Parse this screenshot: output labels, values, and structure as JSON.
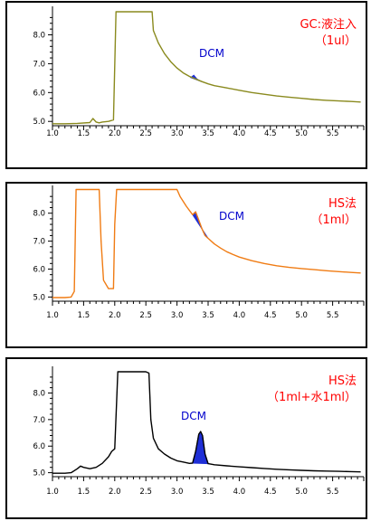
{
  "chart_data": [
    {
      "type": "line",
      "panel_title_lines": [
        "GC:液注入",
        "（1ul）"
      ],
      "peak_label": "DCM",
      "x_ticks": [
        "1.0",
        "1.5",
        "2.0",
        "2.5",
        "3.0",
        "3.5",
        "4.0",
        "4.5",
        "5.0",
        "5.5"
      ],
      "y_ticks": [
        "5.0",
        "6.0",
        "7.0",
        "8.0"
      ],
      "xlim": [
        1.0,
        6.0
      ],
      "ylim": [
        4.85,
        8.8
      ],
      "line_color": "#8a8a1e",
      "title_color": "#ff0000",
      "label_color": "#0000cc",
      "peak_fill": "#1f2fd6",
      "series": [
        {
          "x": [
            1.0,
            1.2,
            1.4,
            1.6,
            1.65,
            1.7,
            1.75,
            1.8,
            1.9,
            1.98,
            2.02,
            2.05,
            2.6,
            2.62,
            2.7,
            2.8,
            2.9,
            3.0,
            3.1,
            3.2,
            3.3,
            3.4,
            3.5,
            3.6,
            3.7,
            3.8,
            4.0,
            4.2,
            4.4,
            4.6,
            4.8,
            5.0,
            5.2,
            5.4,
            5.6,
            5.8,
            5.95
          ],
          "y": [
            4.92,
            4.92,
            4.93,
            4.96,
            5.1,
            4.98,
            4.95,
            4.98,
            5.0,
            5.05,
            8.8,
            8.8,
            8.8,
            8.15,
            7.72,
            7.35,
            7.07,
            6.85,
            6.68,
            6.56,
            6.47,
            6.38,
            6.3,
            6.24,
            6.2,
            6.16,
            6.08,
            6.0,
            5.94,
            5.88,
            5.84,
            5.8,
            5.76,
            5.73,
            5.71,
            5.69,
            5.67
          ]
        }
      ],
      "peak_region": {
        "x": [
          3.22,
          3.27,
          3.32,
          3.37,
          3.42
        ],
        "y": [
          6.52,
          6.6,
          6.47,
          6.4,
          6.36
        ]
      }
    },
    {
      "type": "line",
      "panel_title_lines": [
        "HS法",
        "（1ml）"
      ],
      "peak_label": "DCM",
      "x_ticks": [
        "1.0",
        "1.5",
        "2.0",
        "2.5",
        "3.0",
        "3.5",
        "4.0",
        "4.5",
        "5.0",
        "5.5"
      ],
      "y_ticks": [
        "5.0",
        "6.0",
        "7.0",
        "8.0"
      ],
      "xlim": [
        1.0,
        6.0
      ],
      "ylim": [
        4.85,
        8.8
      ],
      "line_color": "#f07c14",
      "title_color": "#ff0000",
      "label_color": "#0000cc",
      "peak_fill": "#1f2fd6",
      "series": [
        {
          "x": [
            1.0,
            1.2,
            1.3,
            1.35,
            1.38,
            1.75,
            1.78,
            1.82,
            1.9,
            1.98,
            2.0,
            2.03,
            3.0,
            3.05,
            3.15,
            3.25,
            3.3,
            3.35,
            3.4,
            3.45,
            3.5,
            3.6,
            3.7,
            3.8,
            3.9,
            4.0,
            4.2,
            4.4,
            4.6,
            4.8,
            5.0,
            5.2,
            5.4,
            5.6,
            5.8,
            5.95
          ],
          "y": [
            4.98,
            4.98,
            5.0,
            5.2,
            8.85,
            8.85,
            7.0,
            5.6,
            5.3,
            5.3,
            7.6,
            8.85,
            8.85,
            8.6,
            8.25,
            7.95,
            8.05,
            7.75,
            7.45,
            7.2,
            7.1,
            6.9,
            6.75,
            6.62,
            6.52,
            6.43,
            6.3,
            6.2,
            6.12,
            6.06,
            6.02,
            5.98,
            5.94,
            5.91,
            5.88,
            5.86
          ]
        }
      ],
      "peak_region": {
        "x": [
          3.25,
          3.3,
          3.35,
          3.4,
          3.45,
          3.5
        ],
        "y": [
          7.95,
          8.05,
          7.75,
          7.45,
          7.2,
          7.1
        ]
      }
    },
    {
      "type": "line",
      "panel_title_lines": [
        "HS法",
        "（1ml+水1ml）"
      ],
      "peak_label": "DCM",
      "x_ticks": [
        "1.0",
        "1.5",
        "2.0",
        "2.5",
        "3.0",
        "3.5",
        "4.0",
        "4.5",
        "5.0",
        "5.5"
      ],
      "y_ticks": [
        "5.0",
        "6.0",
        "7.0",
        "8.0"
      ],
      "xlim": [
        1.0,
        6.0
      ],
      "ylim": [
        4.85,
        8.8
      ],
      "line_color": "#000000",
      "title_color": "#ff0000",
      "label_color": "#0000cc",
      "peak_fill": "#1f2fd6",
      "series": [
        {
          "x": [
            1.0,
            1.2,
            1.3,
            1.4,
            1.45,
            1.5,
            1.6,
            1.7,
            1.8,
            1.9,
            1.95,
            2.0,
            2.05,
            2.1,
            2.5,
            2.55,
            2.58,
            2.62,
            2.7,
            2.8,
            2.9,
            3.0,
            3.1,
            3.2,
            3.25,
            3.3,
            3.35,
            3.38,
            3.41,
            3.45,
            3.5,
            3.6,
            3.8,
            4.0,
            4.2,
            4.4,
            4.6,
            4.8,
            5.0,
            5.2,
            5.4,
            5.6,
            5.8,
            5.95
          ],
          "y": [
            4.98,
            4.98,
            5.0,
            5.15,
            5.25,
            5.2,
            5.15,
            5.2,
            5.35,
            5.6,
            5.8,
            5.9,
            8.8,
            8.8,
            8.8,
            8.75,
            7.0,
            6.3,
            5.9,
            5.7,
            5.55,
            5.45,
            5.4,
            5.35,
            5.36,
            5.8,
            6.45,
            6.55,
            6.4,
            5.7,
            5.34,
            5.3,
            5.26,
            5.22,
            5.19,
            5.16,
            5.13,
            5.11,
            5.09,
            5.07,
            5.06,
            5.05,
            5.04,
            5.03
          ]
        }
      ],
      "peak_region": {
        "x": [
          3.25,
          3.3,
          3.35,
          3.38,
          3.41,
          3.45,
          3.5
        ],
        "y": [
          5.36,
          5.8,
          6.45,
          6.55,
          6.4,
          5.7,
          5.34
        ]
      }
    }
  ]
}
